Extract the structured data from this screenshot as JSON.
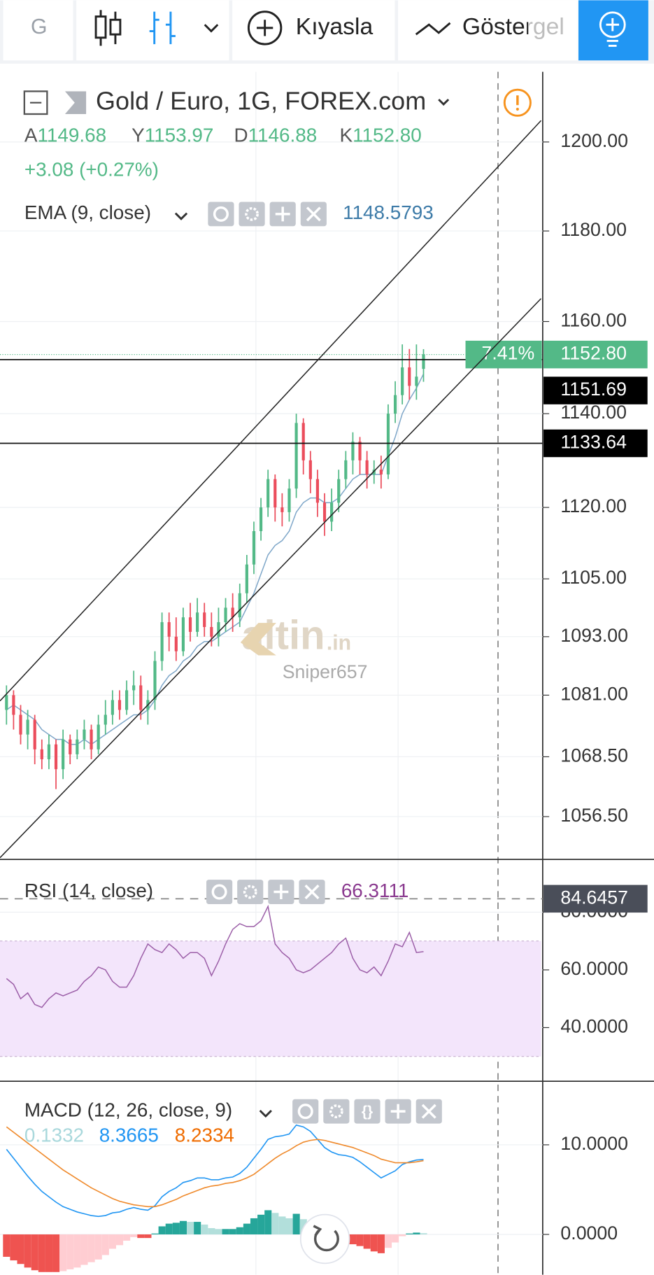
{
  "toolbar": {
    "symbol": "G",
    "compare": "Kıyasla",
    "indicators": "Göstergel"
  },
  "chart_data": [
    {
      "type": "candlestick",
      "title": "Gold / Euro, 1G, FOREX.com",
      "ohlc_legend": [
        {
          "label": "A",
          "value": "1149.68"
        },
        {
          "label": "Y",
          "value": "1153.97"
        },
        {
          "label": "D",
          "value": "1146.88"
        },
        {
          "label": "K",
          "value": "1152.80"
        }
      ],
      "change": "+3.08 (+0.27%)",
      "open": [
        1078,
        1081,
        1077,
        1073,
        1076,
        1070,
        1068,
        1071,
        1066,
        1072,
        1069,
        1072,
        1074,
        1070,
        1075,
        1077,
        1080,
        1078,
        1082,
        1083,
        1078,
        1080,
        1088,
        1096,
        1093,
        1090,
        1097,
        1094,
        1098,
        1095,
        1093,
        1096,
        1099,
        1097,
        1102,
        1108,
        1115,
        1120,
        1126,
        1120,
        1119,
        1124,
        1138,
        1130,
        1126,
        1121,
        1117,
        1121,
        1126,
        1130,
        1134,
        1130,
        1127,
        1128,
        1127,
        1140,
        1144,
        1150,
        1146,
        1149.68
      ],
      "high": [
        1083,
        1082,
        1079,
        1078,
        1077,
        1072,
        1073,
        1072,
        1074,
        1073,
        1074,
        1076,
        1075,
        1077,
        1080,
        1082,
        1082,
        1084,
        1086,
        1085,
        1082,
        1090,
        1098,
        1098,
        1097,
        1099,
        1100,
        1101,
        1100,
        1098,
        1099,
        1101,
        1102,
        1104,
        1110,
        1117,
        1122,
        1128,
        1127,
        1123,
        1126,
        1140,
        1139,
        1132,
        1128,
        1123,
        1124,
        1128,
        1132,
        1136,
        1135,
        1132,
        1130,
        1131,
        1142,
        1147,
        1155,
        1154,
        1155,
        1153.97
      ],
      "low": [
        1075,
        1074,
        1071,
        1070,
        1067,
        1066,
        1066,
        1062,
        1064,
        1067,
        1068,
        1070,
        1068,
        1069,
        1073,
        1075,
        1076,
        1077,
        1079,
        1076,
        1075,
        1078,
        1086,
        1090,
        1088,
        1089,
        1092,
        1093,
        1093,
        1091,
        1091,
        1094,
        1094,
        1095,
        1100,
        1106,
        1113,
        1118,
        1117,
        1116,
        1117,
        1122,
        1127,
        1123,
        1118,
        1114,
        1115,
        1119,
        1124,
        1127,
        1127,
        1124,
        1125,
        1124,
        1126,
        1138,
        1142,
        1143,
        1143,
        1146.88
      ],
      "close": [
        1081,
        1077,
        1073,
        1076,
        1070,
        1068,
        1071,
        1066,
        1072,
        1069,
        1072,
        1074,
        1070,
        1075,
        1077,
        1080,
        1078,
        1082,
        1083,
        1078,
        1080,
        1088,
        1096,
        1093,
        1090,
        1097,
        1094,
        1098,
        1095,
        1093,
        1096,
        1099,
        1097,
        1102,
        1108,
        1115,
        1120,
        1126,
        1120,
        1119,
        1124,
        1138,
        1130,
        1126,
        1121,
        1117,
        1121,
        1126,
        1130,
        1134,
        1130,
        1127,
        1128,
        1127,
        1140,
        1144,
        1150,
        1146,
        1148,
        1152.8
      ],
      "colors": {
        "up": "#53b987",
        "down": "#eb4d5c"
      },
      "overlays": [
        {
          "name": "EMA (9, close)",
          "color": "#7fa7c9",
          "values": [
            1078,
            1079,
            1078,
            1077,
            1076,
            1074,
            1073,
            1072,
            1072,
            1071,
            1071,
            1072,
            1071,
            1072,
            1073,
            1074,
            1075,
            1076,
            1077,
            1077,
            1078,
            1080,
            1083,
            1085,
            1086,
            1088,
            1089,
            1091,
            1092,
            1092,
            1093,
            1094,
            1095,
            1096,
            1099,
            1102,
            1106,
            1110,
            1112,
            1113,
            1115,
            1119,
            1121,
            1122,
            1122,
            1121,
            1121,
            1122,
            1124,
            1126,
            1127,
            1127,
            1127,
            1127,
            1131,
            1135,
            1140,
            1143,
            1145.5,
            1148.5793
          ]
        }
      ],
      "log_scale": true,
      "grid": true,
      "ylim": [
        1048,
        1216
      ],
      "yticks": [
        {
          "value": 1056.5,
          "label": "1056.50"
        },
        {
          "value": 1068.5,
          "label": "1068.50"
        },
        {
          "value": 1081,
          "label": "1081.00"
        },
        {
          "value": 1093,
          "label": "1093.00"
        },
        {
          "value": 1105,
          "label": "1105.00"
        },
        {
          "value": 1120,
          "label": "1120.00"
        },
        {
          "value": 1140,
          "label": "1140.00"
        },
        {
          "value": 1160,
          "label": "1160.00"
        },
        {
          "value": 1180,
          "label": "1180.00"
        },
        {
          "value": 1200,
          "label": "1200.00"
        }
      ],
      "price_lines": [
        1151.69,
        1133.64
      ],
      "last_price": {
        "value": 1152.8,
        "label": "1152.80",
        "badge": "7.41%"
      },
      "watermark": {
        "main": "altin",
        "suffix": ".in"
      },
      "author": "Sniper657"
    },
    {
      "type": "line",
      "title": "RSI (14, close)",
      "color": "#9c5fa8",
      "values": [
        57,
        55,
        50,
        52,
        48,
        47,
        50,
        52,
        51,
        52,
        53,
        56,
        58,
        61,
        60,
        56,
        54,
        54,
        58,
        64,
        69,
        67,
        66,
        69,
        67,
        64,
        66,
        66,
        64,
        58,
        63,
        69,
        74,
        76,
        75,
        75,
        77,
        82,
        69,
        66,
        64,
        60,
        59,
        60,
        62,
        64,
        66,
        69,
        71,
        64,
        60,
        59,
        61,
        58,
        63,
        69,
        68,
        73,
        66,
        66.3111
      ],
      "ylim": [
        21.4,
        98
      ],
      "yticks": [
        {
          "value": 40,
          "label": "40.0000"
        },
        {
          "value": 60,
          "label": "60.0000"
        },
        {
          "value": 80,
          "label": "80.0000"
        }
      ],
      "band": [
        30,
        70
      ],
      "reference": 84.6457
    },
    {
      "type": "macd",
      "title": "MACD (12, 26, close, 9)",
      "histogram": {
        "colors": [
          "#26a69a",
          "#b2dfdb",
          "#ef5350",
          "#ffcdd2"
        ],
        "values": [
          -2.5,
          -2.9,
          -3.3,
          -3.7,
          -4.0,
          -4.2,
          -4.2,
          -4.2,
          -4.1,
          -3.9,
          -3.7,
          -3.4,
          -3.1,
          -2.8,
          -2.3,
          -1.6,
          -1.2,
          -0.7,
          -0.3,
          -0.4,
          -0.4,
          0.1,
          0.9,
          1.2,
          1.3,
          1.5,
          1.4,
          1.4,
          1.1,
          0.7,
          0.6,
          0.6,
          0.6,
          0.8,
          1.2,
          1.8,
          2.2,
          2.7,
          2.4,
          2.0,
          1.8,
          2.3,
          1.7,
          1.0,
          0.0,
          -0.8,
          -1.1,
          -1.2,
          -1.1,
          -1.1,
          -1.3,
          -1.6,
          -1.9,
          -2.1,
          -1.5,
          -0.9,
          -0.2,
          0.1,
          0.2,
          0.1332
        ]
      },
      "macd": {
        "color": "#2196f3",
        "values": [
          9.5,
          8.5,
          7.5,
          6.5,
          5.6,
          4.8,
          4.2,
          3.6,
          3.1,
          2.8,
          2.5,
          2.3,
          2.1,
          2.0,
          2.1,
          2.4,
          2.5,
          2.8,
          3.0,
          2.8,
          2.7,
          3.2,
          4.2,
          4.8,
          5.2,
          5.8,
          6.0,
          6.3,
          6.3,
          6.1,
          6.1,
          6.3,
          6.4,
          6.8,
          7.5,
          8.5,
          9.5,
          10.6,
          10.9,
          11.0,
          11.2,
          12.2,
          12.0,
          11.5,
          10.6,
          9.7,
          9.2,
          8.9,
          8.8,
          8.6,
          8.1,
          7.5,
          6.9,
          6.3,
          6.7,
          7.1,
          7.8,
          8.1,
          8.3,
          8.3665
        ]
      },
      "signal": {
        "color": "#ef8a2c",
        "values": [
          12.0,
          11.4,
          10.8,
          10.2,
          9.6,
          9.0,
          8.4,
          7.8,
          7.2,
          6.7,
          6.2,
          5.7,
          5.2,
          4.8,
          4.4,
          4.0,
          3.7,
          3.5,
          3.3,
          3.2,
          3.1,
          3.1,
          3.3,
          3.6,
          3.9,
          4.3,
          4.6,
          4.9,
          5.2,
          5.4,
          5.5,
          5.7,
          5.8,
          6.0,
          6.3,
          6.7,
          7.3,
          7.9,
          8.5,
          9.0,
          9.4,
          9.9,
          10.3,
          10.5,
          10.6,
          10.5,
          10.3,
          10.1,
          9.9,
          9.7,
          9.4,
          9.1,
          8.8,
          8.4,
          8.2,
          8.0,
          8.0,
          8.0,
          8.1,
          8.2334
        ]
      },
      "ylim": [
        -4.5,
        17
      ],
      "yticks": [
        {
          "value": 0,
          "label": "0.0000"
        },
        {
          "value": 10,
          "label": "10.0000"
        }
      ]
    }
  ]
}
